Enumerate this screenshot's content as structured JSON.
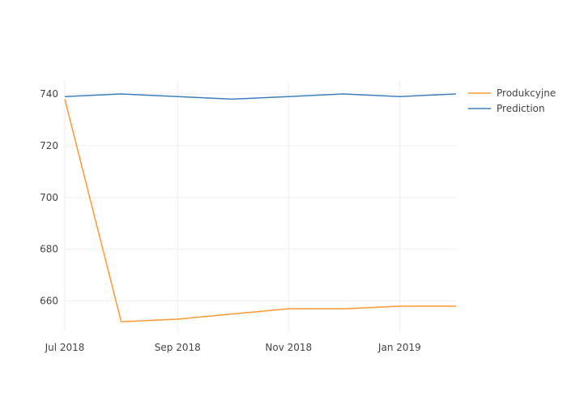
{
  "chart_data": {
    "type": "line",
    "title": "",
    "xlabel": "",
    "ylabel": "",
    "x_type": "date",
    "x_range": [
      "2018-07-01",
      "2019-02-01"
    ],
    "ylim": [
      648,
      745
    ],
    "grid": true,
    "legend_position": "top-right",
    "x_ticks": [
      {
        "value": "2018-07-01",
        "label": "Jul 2018"
      },
      {
        "value": "2018-09-01",
        "label": "Sep 2018"
      },
      {
        "value": "2018-11-01",
        "label": "Nov 2018"
      },
      {
        "value": "2019-01-01",
        "label": "Jan 2019"
      }
    ],
    "y_ticks": [
      {
        "value": 660,
        "label": "660"
      },
      {
        "value": 680,
        "label": "680"
      },
      {
        "value": 700,
        "label": "700"
      },
      {
        "value": 720,
        "label": "720"
      },
      {
        "value": 740,
        "label": "740"
      }
    ],
    "x": [
      "2018-07-01",
      "2018-08-01",
      "2018-09-01",
      "2018-10-01",
      "2018-11-01",
      "2018-12-01",
      "2019-01-01",
      "2019-02-01"
    ],
    "series": [
      {
        "name": "Produkcyjne",
        "color": "#ff9933",
        "values": [
          738,
          652,
          653,
          655,
          657,
          657,
          658,
          658
        ]
      },
      {
        "name": "Prediction",
        "color": "#3d7fc1",
        "values": [
          739,
          740,
          739,
          738,
          739,
          740,
          739,
          740
        ]
      }
    ]
  }
}
